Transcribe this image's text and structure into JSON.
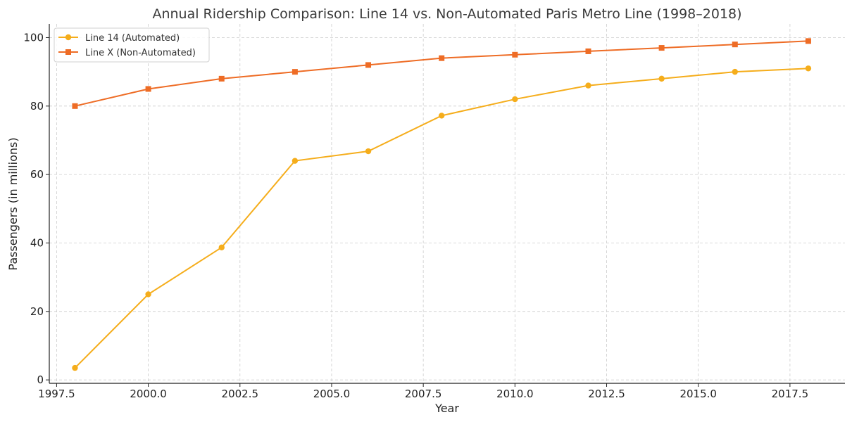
{
  "chart_data": {
    "type": "line",
    "title": "Annual Ridership Comparison: Line 14 vs. Non-Automated Paris Metro Line (1998–2018)",
    "xlabel": "Year",
    "ylabel": "Passengers (in millions)",
    "xlim": [
      1997.3,
      2019.0
    ],
    "ylim": [
      -1,
      104
    ],
    "x_ticks": [
      1997.5,
      2000.0,
      2002.5,
      2005.0,
      2007.5,
      2010.0,
      2012.5,
      2015.0,
      2017.5
    ],
    "x_tick_labels": [
      "1997.5",
      "2000.0",
      "2002.5",
      "2005.0",
      "2007.5",
      "2010.0",
      "2012.5",
      "2015.0",
      "2017.5"
    ],
    "y_ticks": [
      0,
      20,
      40,
      60,
      80,
      100
    ],
    "y_tick_labels": [
      "0",
      "20",
      "40",
      "60",
      "80",
      "100"
    ],
    "grid": true,
    "legend_position": "top-left",
    "x": [
      1998,
      2000,
      2002,
      2004,
      2006,
      2008,
      2010,
      2012,
      2014,
      2016,
      2018
    ],
    "series": [
      {
        "name": "Line 14 (Automated)",
        "color": "#f5ad1b",
        "marker": "circle",
        "values": [
          3.5,
          25,
          38.7,
          64,
          66.8,
          77.2,
          82,
          86,
          88,
          90,
          91
        ]
      },
      {
        "name": "Line X (Non-Automated)",
        "color": "#ee6c25",
        "marker": "square",
        "values": [
          80,
          85,
          88,
          90,
          92,
          94,
          95,
          96,
          97,
          98,
          99
        ]
      }
    ]
  }
}
